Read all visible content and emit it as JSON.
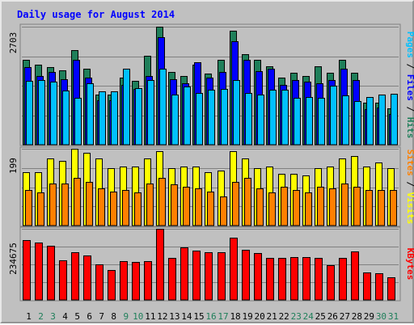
{
  "colors": {
    "background": "#c0c0c0",
    "hits": "#1f7f5a",
    "files": "#0000ff",
    "pages": "#00c0ff",
    "visits": "#ffff00",
    "sites": "#ff8000",
    "kbytes": "#ff0000",
    "title": "#0000ff",
    "weekday_label": "#000000",
    "weekend_label": "#1f7f5a"
  },
  "chart_data": {
    "type": "bar",
    "title": "Daily usage for August 2014",
    "days": [
      "1",
      "2",
      "3",
      "4",
      "5",
      "6",
      "7",
      "8",
      "9",
      "10",
      "11",
      "12",
      "13",
      "14",
      "15",
      "16",
      "17",
      "18",
      "19",
      "20",
      "21",
      "22",
      "23",
      "24",
      "25",
      "26",
      "27",
      "28",
      "29",
      "30",
      "31"
    ],
    "weekend_days": [
      2,
      3,
      9,
      10,
      16,
      17,
      23,
      24,
      30,
      31
    ],
    "panels": [
      {
        "id": "hits_files_pages",
        "max_label": "2703",
        "ymax": 2703,
        "axis_label": {
          "parts": [
            "Pages",
            " / ",
            "Files",
            " / ",
            "Hits"
          ]
        },
        "series": [
          {
            "name": "Hits",
            "color_key": "hits",
            "values": [
              1939,
              1837,
              1776,
              1713,
              2163,
              1735,
              1142,
              1142,
              1541,
              1470,
              2041,
              2703,
              1668,
              1574,
              1837,
              1623,
              1939,
              2620,
              2082,
              1939,
              1796,
              1531,
              1653,
              1571,
              1796,
              1653,
              1939,
              1653,
              963,
              963,
              829
            ]
          },
          {
            "name": "Files",
            "color_key": "files",
            "values": [
              1776,
              1571,
              1674,
              1510,
              1939,
              1541,
              1020,
              1020,
              1368,
              1286,
              1572,
              2469,
              1510,
              1409,
              1898,
              1531,
              1674,
              2377,
              1939,
              1692,
              1735,
              1368,
              1490,
              1450,
              1409,
              1490,
              1735,
              1490,
              809,
              860,
              707
            ]
          },
          {
            "name": "Pages",
            "color_key": "pages",
            "values": [
              1470,
              1490,
              1450,
              1245,
              1082,
              1409,
              1225,
              1225,
              1735,
              1306,
              1490,
              1735,
              1143,
              1327,
              1184,
              1266,
              1286,
              1490,
              1184,
              1143,
              1266,
              1264,
              1082,
              1102,
              1082,
              1347,
              1123,
              1000,
              1102,
              1143,
              1163
            ]
          }
        ]
      },
      {
        "id": "visits_sites",
        "max_label": "199",
        "ymax": 199,
        "axis_label": {
          "parts": [
            "Sites",
            " / ",
            "Visits"
          ]
        },
        "series": [
          {
            "name": "Visits",
            "color_key": "visits",
            "values": [
              139,
              139,
              174,
              169,
              199,
              189,
              174,
              150,
              154,
              154,
              174,
              194,
              150,
              154,
              154,
              139,
              144,
              194,
              174,
              150,
              154,
              134,
              134,
              130,
              150,
              154,
              174,
              180,
              154,
              164,
              150
            ]
          },
          {
            "name": "Sites",
            "color_key": "sites",
            "values": [
              93,
              86,
              110,
              110,
              124,
              114,
              97,
              89,
              93,
              86,
              110,
              124,
              107,
              102,
              97,
              89,
              75,
              114,
              124,
              97,
              86,
              100,
              93,
              86,
              102,
              97,
              110,
              100,
              93,
              93,
              93
            ]
          }
        ]
      },
      {
        "id": "kbytes",
        "max_label": "234675",
        "ymax": 234675,
        "axis_label": {
          "parts": [
            "KBytes"
          ]
        },
        "series": [
          {
            "name": "KBytes",
            "color_key": "kbytes",
            "values": [
              198540,
              191250,
              180300,
              131050,
              159150,
              146800,
              117850,
              99550,
              129200,
              124920,
              127750,
              234675,
              138000,
              172760,
              163030,
              157500,
              157500,
              206950,
              166100,
              155400,
              139800,
              139800,
              143000,
              143000,
              140250,
              114050,
              138000,
              161100,
              91150,
              88300,
              75000
            ]
          }
        ]
      }
    ]
  }
}
